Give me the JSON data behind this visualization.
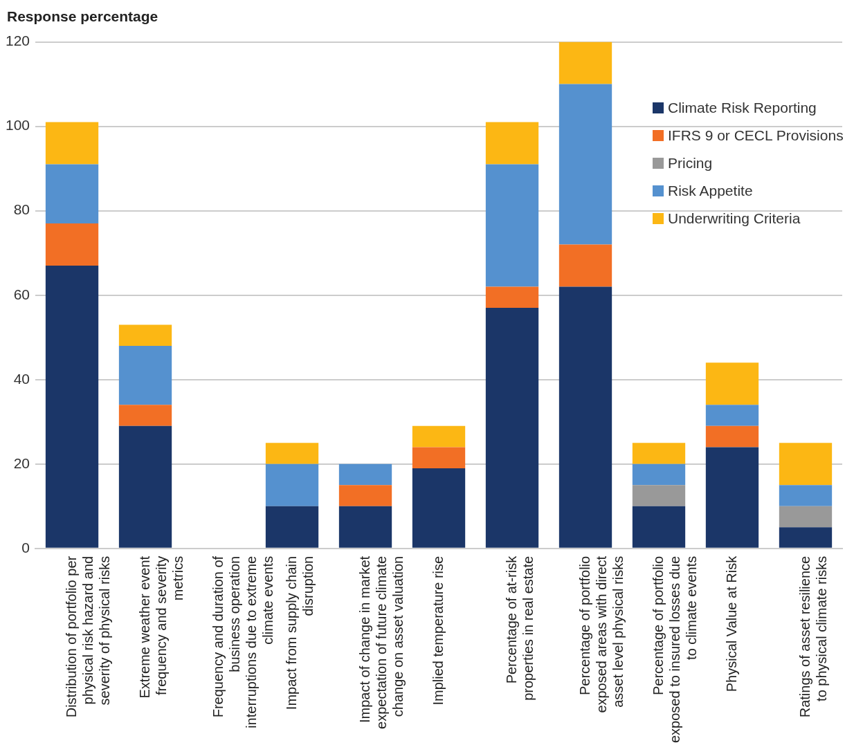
{
  "chart_data": {
    "type": "bar",
    "stacked": true,
    "ylabel": "Response percentage",
    "categories": [
      "Distribution of portfolio per physical risk hazard and severity of physical risks",
      "Extreme weather event frequency and severity metrics",
      "Frequency and duration of business operation interruptions due to extreme climate events",
      "Impact from supply chain disruption",
      "Impact of change in market expectation of future climate change on asset valuation",
      "Implied temperature rise",
      "Percentage of at-risk properties in real estate",
      "Percentage of portfolio exposed areas with direct asset level physical risks",
      "Percentage of portfolio exposed to insured losses due to climate events",
      "Physical Value at Risk",
      "Ratings of asset resilience to physical climate risks"
    ],
    "series": [
      {
        "name": "Climate Risk Reporting",
        "color": "#1b3668",
        "values": [
          67,
          29,
          0,
          10,
          10,
          19,
          57,
          62,
          10,
          24,
          5
        ]
      },
      {
        "name": "IFRS 9 or CECL Provisions",
        "color": "#f26f25",
        "values": [
          10,
          5,
          0,
          0,
          5,
          5,
          5,
          10,
          0,
          5,
          0
        ]
      },
      {
        "name": "Pricing",
        "color": "#999999",
        "values": [
          0,
          0,
          0,
          0,
          0,
          0,
          0,
          0,
          5,
          0,
          5
        ]
      },
      {
        "name": "Risk Appetite",
        "color": "#5591cf",
        "values": [
          14,
          14,
          0,
          10,
          5,
          0,
          29,
          38,
          5,
          5,
          5
        ]
      },
      {
        "name": "Underwriting Criteria",
        "color": "#fcb714",
        "values": [
          10,
          5,
          0,
          5,
          0,
          5,
          10,
          10,
          5,
          10,
          10
        ]
      }
    ],
    "ylim": [
      0,
      120
    ],
    "yticks": [
      0,
      20,
      40,
      60,
      80,
      100,
      120
    ],
    "grid": "y",
    "legend": "top right"
  }
}
